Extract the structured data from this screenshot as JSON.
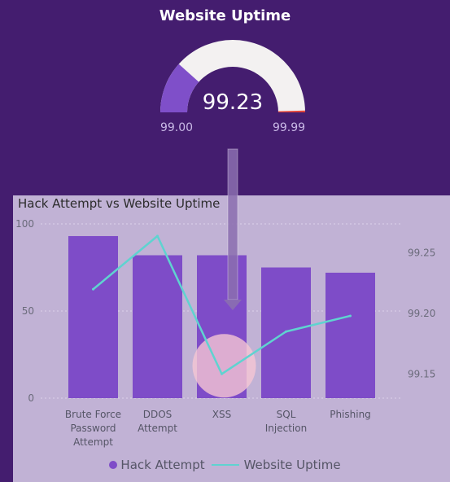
{
  "gauge": {
    "title": "Website Uptime",
    "value": 99.23,
    "value_label": "99.23",
    "min": 99.0,
    "max": 99.99,
    "min_label": "99.00",
    "max_label": "99.99",
    "fill_color": "#7f4fc9",
    "track_color": "#f3f1f1",
    "target_color": "#e0463c"
  },
  "chart_data": {
    "type": "bar",
    "title": "Hack Attempt vs Website Uptime",
    "categories": [
      "Brute Force Password Attempt",
      "DDOS Attempt",
      "XSS",
      "SQL Injection",
      "Phishing"
    ],
    "category_lines": [
      [
        "Brute Force",
        "Password",
        "Attempt"
      ],
      [
        "DDOS",
        "Attempt"
      ],
      [
        "XSS"
      ],
      [
        "SQL",
        "Injection"
      ],
      [
        "Phishing"
      ]
    ],
    "series": [
      {
        "name": "Hack Attempt",
        "type": "bar",
        "axis": "left",
        "color": "#7e4cc8",
        "values": [
          93,
          82,
          82,
          75,
          72
        ]
      },
      {
        "name": "Website Uptime",
        "type": "line",
        "axis": "right",
        "color": "#5fd3d0",
        "values": [
          99.22,
          99.264,
          99.15,
          99.185,
          99.198
        ]
      }
    ],
    "y_left": {
      "lim": [
        0,
        100
      ],
      "ticks": [
        "0",
        "50",
        "100"
      ]
    },
    "y_right": {
      "lim": [
        99.13,
        99.274
      ],
      "ticks": [
        "99.15",
        "99.20",
        "99.25"
      ]
    },
    "grid": true,
    "legend_position": "bottom"
  },
  "legend": {
    "hack_label": "Hack Attempt",
    "uptime_label": "Website Uptime"
  }
}
